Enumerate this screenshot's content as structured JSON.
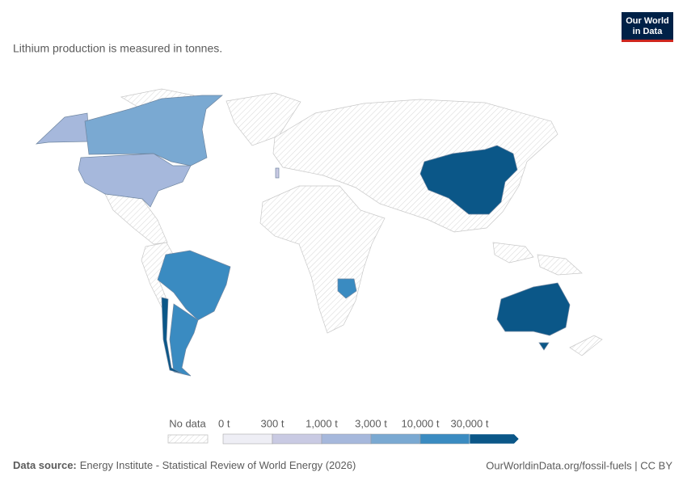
{
  "header": {
    "logo": [
      "Our World",
      "in Data"
    ],
    "subtitle": "Lithium production is measured in tonnes."
  },
  "legend": {
    "no_data": "No data",
    "bins": [
      "0 t",
      "300 t",
      "1,000 t",
      "3,000 t",
      "10,000 t",
      "30,000 t"
    ],
    "colors": [
      "#eeeef5",
      "#c9cae3",
      "#a6b8dc",
      "#7aa9d2",
      "#3a8bc1",
      "#0b5788"
    ]
  },
  "footer": {
    "source_label": "Data source:",
    "source": "Energy Institute - Statistical Review of World Energy (2026)",
    "link": "OurWorldinData.org/fossil-fuels | CC BY"
  }
}
